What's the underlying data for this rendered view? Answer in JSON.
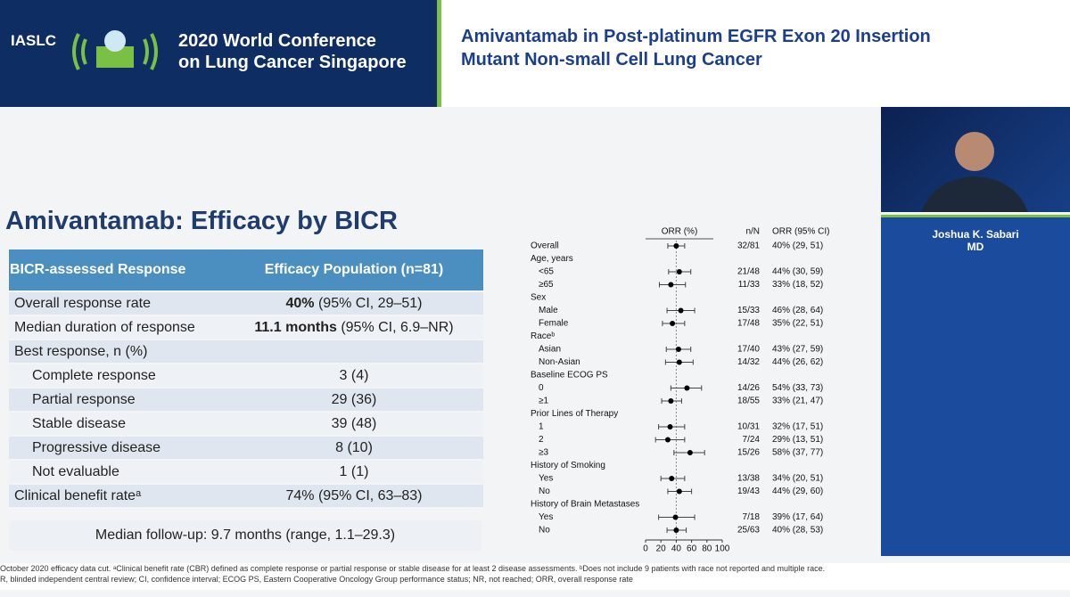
{
  "header": {
    "org": "IASLC",
    "conference": [
      "2020 World Conference",
      "on Lung Cancer Singapore"
    ],
    "title": [
      "Amivantamab in Post-platinum EGFR Exon 20 Insertion",
      "Mutant Non-small Cell Lung Cancer"
    ]
  },
  "speaker": {
    "name": "Joshua K. Sabari",
    "credential": "MD"
  },
  "slide": {
    "title": "Amivantamab: Efficacy by BICR",
    "table": {
      "columns": [
        "BICR-assessed Response",
        "Efficacy Population (n=81)"
      ],
      "rows": [
        {
          "label": "Overall response rate",
          "bold": "40%",
          "value": " (95% CI, 29–51)"
        },
        {
          "label": "Median duration of response",
          "bold": "11.1 months",
          "value": " (95% CI, 6.9–NR)"
        },
        {
          "label": "Best response, n (%)"
        },
        {
          "label": "Complete response",
          "value": "3 (4)",
          "sub": true
        },
        {
          "label": "Partial response",
          "value": "29 (36)",
          "sub": true
        },
        {
          "label": "Stable disease",
          "value": "39 (48)",
          "sub": true
        },
        {
          "label": "Progressive disease",
          "value": "8 (10)",
          "sub": true
        },
        {
          "label": "Not evaluable",
          "value": "1 (1)",
          "sub": true
        },
        {
          "label": "Clinical benefit rateᵃ",
          "value": "74% (95% CI, 63–83)"
        }
      ]
    },
    "follow_up": "Median follow-up: 9.7 months (range, 1.1–29.3)",
    "footnotes": [
      "October 2020 efficacy data cut. ᵃClinical benefit rate (CBR) defined as complete response or partial response or stable disease for at least 2 disease assessments. ᵇDoes not include 9 patients with race not reported and multiple race.",
      "R, blinded independent central review; CI, confidence interval; ECOG PS, Eastern Cooperative Oncology Group performance status; NR, not reached; ORR, overall response rate"
    ]
  },
  "chart_data": {
    "type": "forest",
    "xlabel": "ORR (%)",
    "column_headers": [
      "n/N",
      "ORR (95% CI)"
    ],
    "categories": [
      "Overall",
      "Age, years",
      "<65",
      "≥65",
      "Sex",
      "Male",
      "Female",
      "Raceᵇ",
      "Asian",
      "Non-Asian",
      "Baseline ECOG PS",
      "0",
      "≥1",
      "Prior Lines of Therapy",
      "1",
      "2",
      "≥3",
      "History of Smoking",
      "Yes",
      "No",
      "History of Brain Metastases",
      "Yes",
      "No"
    ],
    "n_n": [
      "32/81",
      null,
      "21/48",
      "11/33",
      null,
      "15/33",
      "17/48",
      null,
      "17/40",
      "14/32",
      null,
      "14/26",
      "18/55",
      null,
      "10/31",
      "7/24",
      "15/26",
      null,
      "13/38",
      "19/43",
      null,
      "7/18",
      "25/63"
    ],
    "values": [
      40,
      null,
      44,
      33,
      null,
      46,
      35,
      null,
      43,
      44,
      null,
      54,
      33,
      null,
      32,
      29,
      58,
      null,
      34,
      44,
      null,
      39,
      40
    ],
    "lower": [
      29,
      null,
      30,
      18,
      null,
      28,
      22,
      null,
      27,
      26,
      null,
      33,
      21,
      null,
      17,
      13,
      37,
      null,
      20,
      29,
      null,
      17,
      28
    ],
    "upper": [
      51,
      null,
      59,
      52,
      null,
      64,
      51,
      null,
      59,
      62,
      null,
      73,
      47,
      null,
      51,
      51,
      77,
      null,
      51,
      60,
      null,
      64,
      53
    ],
    "value_labels": [
      "40% (29, 51)",
      null,
      "44% (30, 59)",
      "33% (18, 52)",
      null,
      "46% (28, 64)",
      "35% (22, 51)",
      null,
      "43% (27, 59)",
      "44% (26, 62)",
      null,
      "54% (33, 73)",
      "33% (21, 47)",
      null,
      "32% (17, 51)",
      "29% (13, 51)",
      "58% (37, 77)",
      null,
      "34% (20, 51)",
      "44% (29, 60)",
      null,
      "39% (17, 64)",
      "40% (28, 53)"
    ],
    "xlim": [
      0,
      100
    ],
    "xticks": [
      0,
      20,
      40,
      60,
      80,
      100
    ],
    "color": "#000000"
  }
}
